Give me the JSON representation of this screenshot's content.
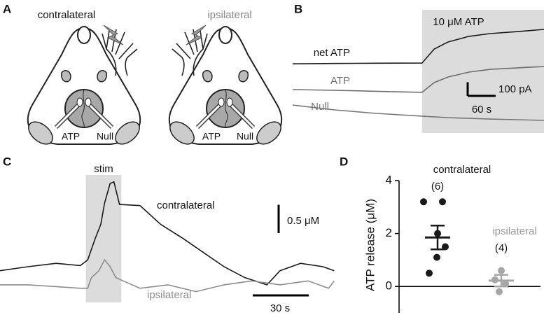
{
  "panel_a": {
    "letter": "A",
    "left": {
      "label": "contralateral",
      "electrodes": [
        "ATP",
        "Null"
      ]
    },
    "right": {
      "label": "ipsilateral",
      "electrodes": [
        "ATP",
        "Null"
      ]
    }
  },
  "chart_data": [
    {
      "letter": "B",
      "type": "line",
      "x": [
        0,
        90,
        180,
        278,
        304,
        334,
        379,
        424,
        484,
        540
      ],
      "xlim": [
        0,
        540
      ],
      "ylim": [
        0,
        900
      ],
      "shade": [
        278,
        540
      ],
      "shade_label": "10 μM ATP",
      "series": [
        {
          "name": "net ATP",
          "color": "#1a1a1a",
          "values": [
            505,
            508,
            510,
            511,
            613,
            665,
            706,
            726,
            741,
            757
          ]
        },
        {
          "name": "ATP",
          "color": "#6e6e6e",
          "values": [
            317,
            312,
            305,
            297,
            368,
            409,
            445,
            465,
            476,
            486
          ]
        },
        {
          "name": "Null",
          "color": "#777777",
          "values": [
            204,
            169,
            143,
            123,
            118,
            112,
            107,
            102,
            97,
            92
          ]
        }
      ],
      "scale_x": {
        "value": 60,
        "label": "60 s"
      },
      "scale_y": {
        "value": 100,
        "label": "100 pA"
      }
    },
    {
      "letter": "C",
      "type": "line",
      "xlim": [
        0,
        180
      ],
      "ylim": [
        0,
        2.25
      ],
      "shade": [
        46,
        65
      ],
      "shade_label": "stim",
      "series": [
        {
          "name": "contralateral",
          "color": "#1a1a1a",
          "x": [
            0,
            15,
            30,
            43,
            47,
            51,
            54,
            56,
            59,
            61,
            64,
            75,
            86,
            98,
            109,
            120,
            131,
            143,
            150,
            161,
            173,
            179
          ],
          "values": [
            0.56,
            0.63,
            0.69,
            0.65,
            0.75,
            1.13,
            1.38,
            1.75,
            2.1,
            2.13,
            1.73,
            1.71,
            1.38,
            1.13,
            0.88,
            0.63,
            0.44,
            0.31,
            0.56,
            0.69,
            0.63,
            0.56
          ]
        },
        {
          "name": "ipsilateral",
          "color": "#8c8c8c",
          "x": [
            0,
            15,
            30,
            43,
            47,
            49,
            53,
            56,
            59,
            62,
            66,
            75,
            90,
            105,
            120,
            135,
            150,
            165,
            176,
            179
          ],
          "values": [
            0.31,
            0.31,
            0.28,
            0.25,
            0.25,
            0.44,
            0.56,
            0.75,
            0.63,
            0.44,
            0.38,
            0.25,
            0.31,
            0.19,
            0.31,
            0.38,
            0.31,
            0.38,
            0.25,
            0.38
          ]
        }
      ],
      "scale_x": {
        "value": 30,
        "label": "30 s"
      },
      "scale_y": {
        "value": 0.5,
        "label": "0.5 μM"
      }
    },
    {
      "letter": "D",
      "type": "dot",
      "ylabel": "ATP release (μM)",
      "ylim": [
        -1,
        4
      ],
      "yticks": [
        0,
        2,
        4
      ],
      "categories": [
        "contralateral",
        "ipsilateral"
      ],
      "n_labels": [
        "(6)",
        "(4)"
      ],
      "colors": [
        "#1a1a1a",
        "#a6a6a6"
      ],
      "points": [
        [
          3.2,
          3.2,
          2.0,
          1.5,
          1.1,
          0.5
        ],
        [
          0.6,
          0.25,
          0.1,
          -0.2
        ]
      ],
      "mean": [
        1.85,
        0.22
      ],
      "sem": [
        0.45,
        0.22
      ]
    }
  ]
}
